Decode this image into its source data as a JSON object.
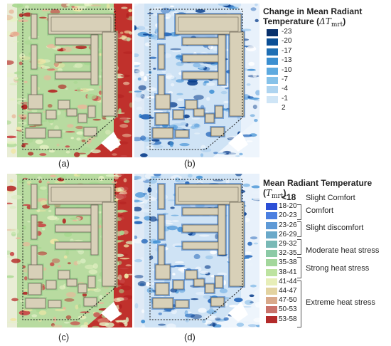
{
  "panels": [
    {
      "label": "(a)",
      "type": "heat",
      "scheme": "base"
    },
    {
      "label": "(b)",
      "type": "cool",
      "scheme": "change"
    },
    {
      "label": "(c)",
      "type": "heat",
      "scheme": "mixed"
    },
    {
      "label": "(d)",
      "type": "cool",
      "scheme": "mrt"
    }
  ],
  "legend_change": {
    "title": "Change in Mean Radiant Temperature",
    "symbol": "ΔT",
    "subscript": "mrt",
    "items": [
      {
        "value": "-23",
        "color": "#08306b"
      },
      {
        "value": "-20",
        "color": "#0b4f96"
      },
      {
        "value": "-17",
        "color": "#1f6fb4"
      },
      {
        "value": "-13",
        "color": "#3b8fd0"
      },
      {
        "value": "-10",
        "color": "#5eaadf"
      },
      {
        "value": "-7",
        "color": "#86c2e9"
      },
      {
        "value": "-4",
        "color": "#aed4f0"
      },
      {
        "value": "-1",
        "color": "#cfe5f6"
      },
      {
        "value": "2",
        "color": "#ffffff"
      }
    ]
  },
  "legend_mrt": {
    "title": "Mean Radiant Temperature",
    "symbol": "T",
    "subscript": "mrt",
    "items": [
      {
        "range": "<18",
        "color": "#ffffff"
      },
      {
        "range": "18-20",
        "color": "#2c4fd6"
      },
      {
        "range": "20-23",
        "color": "#4b7fe0"
      },
      {
        "range": "23-26",
        "color": "#5f9ad6"
      },
      {
        "range": "26-29",
        "color": "#6aa9c9"
      },
      {
        "range": "29-32",
        "color": "#79b9b6"
      },
      {
        "range": "32-35",
        "color": "#8ccaa6"
      },
      {
        "range": "35-38",
        "color": "#a3d79c"
      },
      {
        "range": "38-41",
        "color": "#bde3a0"
      },
      {
        "range": "41-44",
        "color": "#e7eeb8"
      },
      {
        "range": "44-47",
        "color": "#e3d3a0"
      },
      {
        "range": "47-50",
        "color": "#d9a98a"
      },
      {
        "range": "50-53",
        "color": "#c9726a"
      },
      {
        "range": "53-58",
        "color": "#b32a2a"
      }
    ],
    "categories": [
      "Slight Comfort",
      "Comfort",
      "Slight  discomfort",
      "Moderate heat stress",
      "Strong heat stress",
      "Extreme heat stress"
    ]
  }
}
